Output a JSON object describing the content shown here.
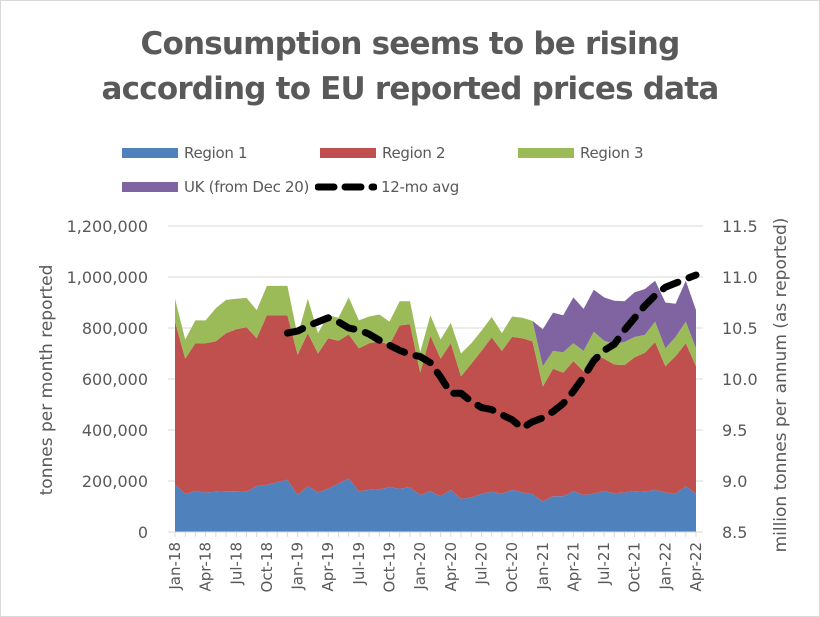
{
  "chart_data": {
    "type": "area",
    "stacked": true,
    "title": "Consumption seems to be rising according to EU reported prices data",
    "title_lines": [
      "Consumption seems to be rising",
      "according to EU reported prices data"
    ],
    "ylabel": "tonnes per month reported",
    "y2label": "million tonnes per annum (as reported)",
    "ylim": [
      0,
      1200000
    ],
    "y2lim": [
      8.5,
      11.5
    ],
    "yticks": [
      "0",
      "200,000",
      "400,000",
      "600,000",
      "800,000",
      "1,000,000",
      "1,200,000"
    ],
    "yticks_values": [
      0,
      200000,
      400000,
      600000,
      800000,
      1000000,
      1200000
    ],
    "y2ticks": [
      "8.5",
      "9.0",
      "9.5",
      "10.0",
      "10.5",
      "11.0",
      "11.5"
    ],
    "y2ticks_values": [
      8.5,
      9.0,
      9.5,
      10.0,
      10.5,
      11.0,
      11.5
    ],
    "grid": true,
    "legend_position": "top",
    "x": [
      "Jan-18",
      "Feb-18",
      "Mar-18",
      "Apr-18",
      "May-18",
      "Jun-18",
      "Jul-18",
      "Aug-18",
      "Sep-18",
      "Oct-18",
      "Nov-18",
      "Dec-18",
      "Jan-19",
      "Feb-19",
      "Mar-19",
      "Apr-19",
      "May-19",
      "Jun-19",
      "Jul-19",
      "Aug-19",
      "Sep-19",
      "Oct-19",
      "Nov-19",
      "Dec-19",
      "Jan-20",
      "Feb-20",
      "Mar-20",
      "Apr-20",
      "May-20",
      "Jun-20",
      "Jul-20",
      "Aug-20",
      "Sep-20",
      "Oct-20",
      "Nov-20",
      "Dec-20",
      "Jan-21",
      "Feb-21",
      "Mar-21",
      "Apr-21",
      "May-21",
      "Jun-21",
      "Jul-21",
      "Aug-21",
      "Sep-21",
      "Oct-21",
      "Nov-21",
      "Dec-21",
      "Jan-22",
      "Feb-22",
      "Mar-22",
      "Apr-22"
    ],
    "xtick_labels": [
      "Jan-18",
      "Apr-18",
      "Jul-18",
      "Oct-18",
      "Jan-19",
      "Apr-19",
      "Jul-19",
      "Oct-19",
      "Jan-20",
      "Apr-20",
      "Jul-20",
      "Oct-20",
      "Jan-21",
      "Apr-21",
      "Jul-21",
      "Oct-21",
      "Jan-22",
      "Apr-22"
    ],
    "series": [
      {
        "name": "Region 1",
        "color": "#4f81bd",
        "axis": "left",
        "values": [
          185000,
          150000,
          160000,
          155000,
          158000,
          160000,
          160000,
          158000,
          180000,
          185000,
          195000,
          205000,
          145000,
          180000,
          155000,
          170000,
          190000,
          210000,
          160000,
          165000,
          168000,
          175000,
          170000,
          175000,
          145000,
          160000,
          140000,
          165000,
          130000,
          135000,
          150000,
          158000,
          150000,
          165000,
          155000,
          148000,
          120000,
          140000,
          140000,
          160000,
          145000,
          150000,
          160000,
          152000,
          155000,
          160000,
          158000,
          165000,
          155000,
          150000,
          180000,
          150000
        ]
      },
      {
        "name": "Region 2",
        "color": "#c0504d",
        "axis": "left",
        "values": [
          640000,
          530000,
          580000,
          585000,
          590000,
          620000,
          635000,
          645000,
          580000,
          665000,
          655000,
          645000,
          550000,
          600000,
          545000,
          590000,
          560000,
          565000,
          560000,
          575000,
          580000,
          560000,
          640000,
          640000,
          480000,
          610000,
          540000,
          575000,
          480000,
          525000,
          560000,
          605000,
          560000,
          600000,
          605000,
          600000,
          450000,
          500000,
          485000,
          510000,
          485000,
          545000,
          520000,
          505000,
          500000,
          525000,
          545000,
          580000,
          495000,
          540000,
          560000,
          500000
        ]
      },
      {
        "name": "Region 3",
        "color": "#9bbb59",
        "axis": "left",
        "values": [
          90000,
          75000,
          90000,
          90000,
          130000,
          130000,
          120000,
          115000,
          110000,
          115000,
          115000,
          115000,
          75000,
          135000,
          80000,
          90000,
          90000,
          145000,
          110000,
          105000,
          105000,
          90000,
          95000,
          90000,
          80000,
          80000,
          75000,
          80000,
          90000,
          80000,
          80000,
          80000,
          70000,
          80000,
          80000,
          80000,
          80000,
          70000,
          80000,
          70000,
          80000,
          90000,
          70000,
          80000,
          90000,
          80000,
          70000,
          80000,
          70000,
          75000,
          85000,
          70000
        ]
      },
      {
        "name": "UK (from Dec 20)",
        "color": "#8064a2",
        "axis": "left",
        "values": [
          null,
          null,
          null,
          null,
          null,
          null,
          null,
          null,
          null,
          null,
          null,
          null,
          null,
          null,
          null,
          null,
          null,
          null,
          null,
          null,
          null,
          null,
          null,
          null,
          null,
          null,
          null,
          null,
          null,
          null,
          null,
          null,
          null,
          null,
          null,
          0,
          145000,
          150000,
          145000,
          180000,
          165000,
          165000,
          170000,
          170000,
          160000,
          175000,
          180000,
          160000,
          180000,
          130000,
          160000,
          150000
        ]
      },
      {
        "name": "12-mo avg",
        "color": "#000000",
        "style": "dashed",
        "axis": "right",
        "values": [
          null,
          null,
          null,
          null,
          null,
          null,
          null,
          null,
          null,
          null,
          null,
          10.45,
          10.47,
          10.52,
          10.56,
          10.6,
          10.56,
          10.5,
          10.48,
          10.44,
          10.38,
          10.33,
          10.28,
          10.24,
          10.22,
          10.16,
          10.02,
          9.86,
          9.86,
          9.78,
          9.72,
          9.7,
          9.65,
          9.6,
          9.52,
          9.58,
          9.62,
          9.68,
          9.76,
          9.88,
          10.02,
          10.18,
          10.28,
          10.34,
          10.48,
          10.6,
          10.72,
          10.82,
          10.9,
          10.94,
          10.98,
          11.02
        ]
      }
    ]
  },
  "legend": {
    "items": [
      {
        "label": "Region 1",
        "color": "#4f81bd"
      },
      {
        "label": "Region 2",
        "color": "#c0504d"
      },
      {
        "label": "Region 3",
        "color": "#9bbb59"
      },
      {
        "label": "UK (from Dec 20)",
        "color": "#8064a2"
      },
      {
        "label": "12-mo avg",
        "color": "#000000"
      }
    ]
  }
}
